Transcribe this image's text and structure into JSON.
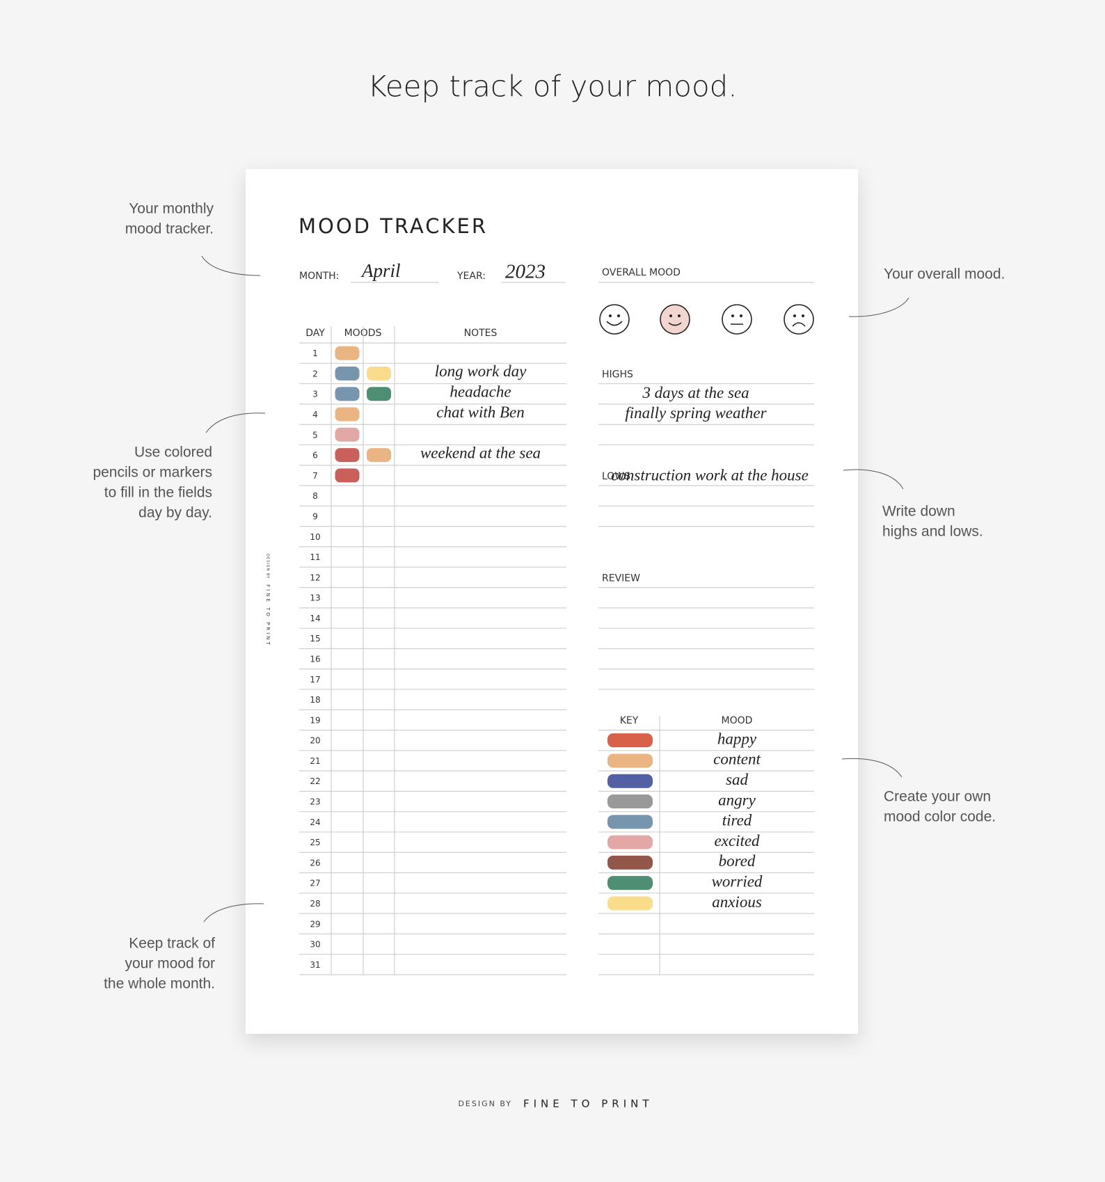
{
  "header": {
    "title": "Keep track of your mood."
  },
  "annotations": [
    {
      "lines": [
        "Your monthly",
        "mood tracker."
      ]
    },
    {
      "lines": [
        "Use colored",
        "pencils or markers",
        "to fill in the fields",
        "day by day."
      ]
    },
    {
      "lines": [
        "Keep track of",
        "your mood for",
        "the whole month."
      ]
    },
    {
      "lines": [
        "Your overall mood."
      ]
    },
    {
      "lines": [
        "Write down",
        "highs and lows."
      ]
    },
    {
      "lines": [
        "Create your own",
        "mood color code."
      ]
    }
  ],
  "sheet": {
    "title": "MOOD TRACKER",
    "month_label": "MONTH:",
    "month": "April",
    "year_label": "YEAR:",
    "year": "2023",
    "side_credit": {
      "prefix": "DESIGN BY",
      "name": "FINE TO PRINT"
    },
    "table": {
      "headers": [
        "DAY",
        "MOODS",
        "NOTES"
      ],
      "rows": [
        {
          "day": "1",
          "moods": [
            "#ebb483"
          ]
        },
        {
          "day": "2",
          "moods": [
            "#7796ae",
            "#f9dc8c"
          ],
          "note": "long work day"
        },
        {
          "day": "3",
          "moods": [
            "#7796ae",
            "#4e8f73"
          ],
          "note": "headache"
        },
        {
          "day": "4",
          "moods": [
            "#ebb483"
          ],
          "note": "chat with Ben"
        },
        {
          "day": "5",
          "moods": [
            "#e3a8a6"
          ]
        },
        {
          "day": "6",
          "moods": [
            "#c9615a",
            "#ebb483"
          ],
          "note": "weekend at the sea"
        },
        {
          "day": "7",
          "moods": [
            "#c9615a"
          ]
        },
        {
          "day": "8"
        },
        {
          "day": "9"
        },
        {
          "day": "10"
        },
        {
          "day": "11"
        },
        {
          "day": "12"
        },
        {
          "day": "13"
        },
        {
          "day": "14"
        },
        {
          "day": "15"
        },
        {
          "day": "16"
        },
        {
          "day": "17"
        },
        {
          "day": "18"
        },
        {
          "day": "19"
        },
        {
          "day": "20"
        },
        {
          "day": "21"
        },
        {
          "day": "22"
        },
        {
          "day": "23"
        },
        {
          "day": "24"
        },
        {
          "day": "25"
        },
        {
          "day": "26"
        },
        {
          "day": "27"
        },
        {
          "day": "28"
        },
        {
          "day": "29"
        },
        {
          "day": "30"
        },
        {
          "day": "31"
        }
      ]
    },
    "overall_mood": {
      "label": "OVERALL MOOD",
      "selected": 1,
      "selected_color": "#f3d5cf"
    },
    "highs": {
      "label": "HIGHS",
      "entries": [
        "3 days at the sea",
        "finally spring weather"
      ]
    },
    "lows": {
      "label": "LOWS",
      "entries": [
        "construction work at the house"
      ]
    },
    "review": {
      "label": "REVIEW"
    },
    "key": {
      "headers": [
        "KEY",
        "MOOD"
      ],
      "items": [
        {
          "color": "#d9614a",
          "mood": "happy"
        },
        {
          "color": "#ebb483",
          "mood": "content"
        },
        {
          "color": "#5360a3",
          "mood": "sad"
        },
        {
          "color": "#999999",
          "mood": "angry"
        },
        {
          "color": "#7796ae",
          "mood": "tired"
        },
        {
          "color": "#e3a8a6",
          "mood": "excited"
        },
        {
          "color": "#93574a",
          "mood": "bored"
        },
        {
          "color": "#4e8f73",
          "mood": "worried"
        },
        {
          "color": "#f9dc8c",
          "mood": "anxious"
        }
      ]
    }
  },
  "footer": {
    "prefix": "DESIGN BY",
    "name": "FINE TO PRINT"
  }
}
